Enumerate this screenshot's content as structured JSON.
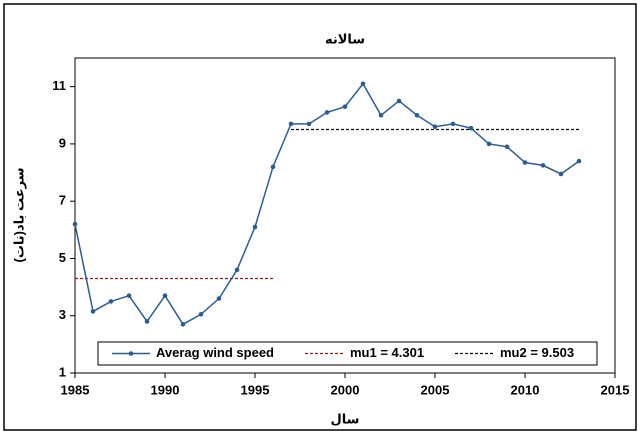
{
  "chart_data": {
    "type": "line",
    "title": "سالانه",
    "xlabel": "سال",
    "ylabel": "سرعت باد(نات)",
    "x": [
      1985,
      1986,
      1987,
      1988,
      1989,
      1990,
      1991,
      1992,
      1993,
      1994,
      1995,
      1996,
      1997,
      1998,
      1999,
      2000,
      2001,
      2002,
      2003,
      2004,
      2005,
      2006,
      2007,
      2008,
      2009,
      2010,
      2011,
      2012,
      2013
    ],
    "series": [
      {
        "name": "Averag wind speed",
        "color": "#2e5c8f",
        "values": [
          6.2,
          3.15,
          3.5,
          3.7,
          2.8,
          3.7,
          2.7,
          3.05,
          3.6,
          4.6,
          6.1,
          8.2,
          9.7,
          9.7,
          10.1,
          10.3,
          11.1,
          10.0,
          10.5,
          10.0,
          9.6,
          9.7,
          9.55,
          9.0,
          8.9,
          8.35,
          8.25,
          7.95,
          8.4
        ]
      }
    ],
    "reference_lines": [
      {
        "name": "mu1 = 4.301",
        "value": 4.301,
        "x": [
          1985,
          1996
        ],
        "color": "#8b1a1a"
      },
      {
        "name": "mu2 = 9.503",
        "value": 9.503,
        "x": [
          1997,
          2013
        ],
        "color": "#000000"
      }
    ],
    "xlim": [
      1985,
      2015
    ],
    "xticks": [
      1985,
      1990,
      1995,
      2000,
      2005,
      2010,
      2015
    ],
    "ylim": [
      1,
      12
    ],
    "yticks": [
      1,
      3,
      5,
      7,
      9,
      11
    ]
  }
}
